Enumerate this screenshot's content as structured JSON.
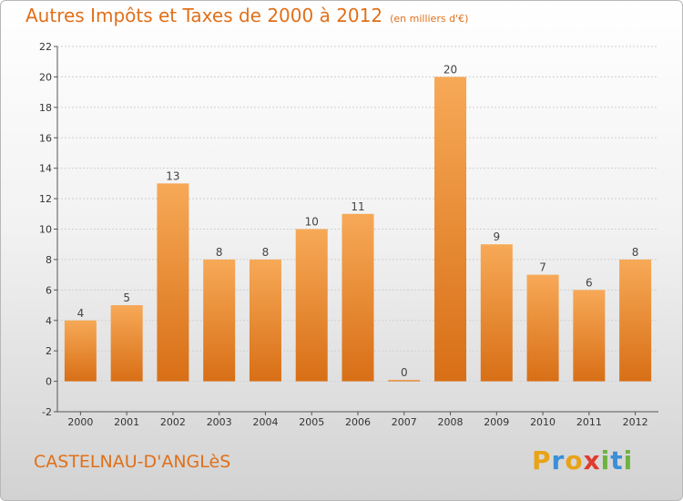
{
  "chart_data": {
    "type": "bar",
    "title": "Autres Impôts et Taxes de 2000 à 2012",
    "unit_note": "(en milliers d'€)",
    "categories": [
      "2000",
      "2001",
      "2002",
      "2003",
      "2004",
      "2005",
      "2006",
      "2007",
      "2008",
      "2009",
      "2010",
      "2011",
      "2012"
    ],
    "values": [
      4,
      5,
      13,
      8,
      8,
      10,
      11,
      0,
      20,
      9,
      7,
      6,
      8
    ],
    "ylim": [
      -2,
      22
    ],
    "yticks": [
      -2,
      0,
      2,
      4,
      6,
      8,
      10,
      12,
      14,
      16,
      18,
      20,
      22
    ],
    "grid": true,
    "bar_color": "#f08a2c",
    "bar_color_light": "#f7a957",
    "bar_color_dark": "#d86f16"
  },
  "commune": "CASTELNAU-D'ANGLèS",
  "logo": {
    "letters": [
      "P",
      "r",
      "o",
      "x",
      "i",
      "t",
      "i"
    ],
    "colors": [
      "#e8a317",
      "#3a8fd6",
      "#e8a317",
      "#e03a2e",
      "#6cb33f",
      "#3a8fd6",
      "#6cb33f"
    ]
  }
}
